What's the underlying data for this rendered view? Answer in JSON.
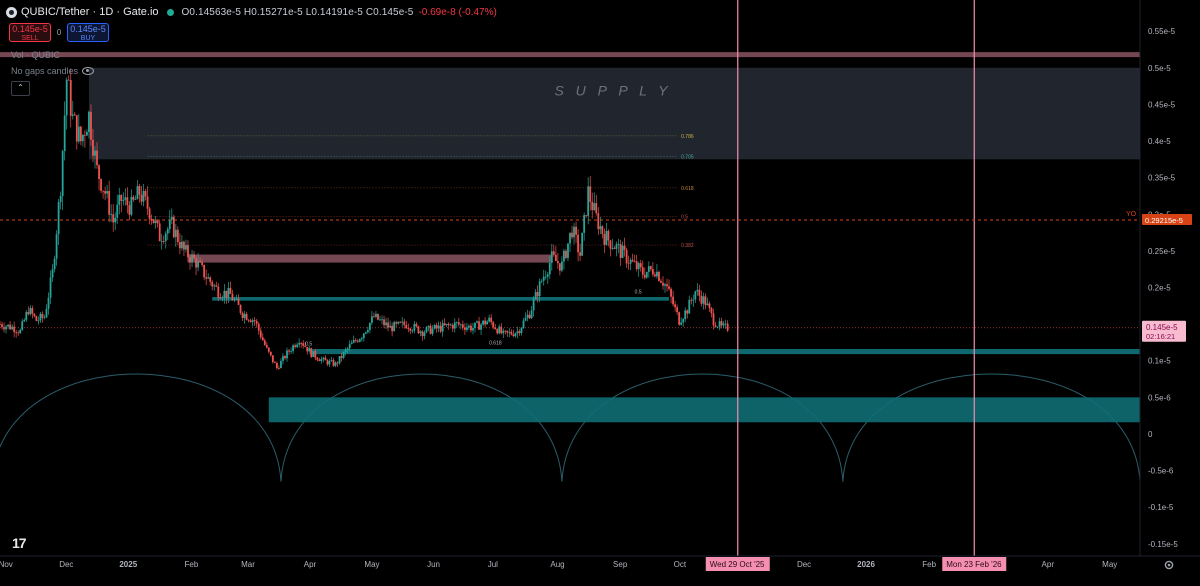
{
  "header": {
    "symbol": "QUBIC/Tether · 1D · Gate.io",
    "ohlc": "O0.14563e-5  H0.15271e-5  L0.14191e-5  C0.145e-5",
    "change": "-0.69e-8 (-0.47%)"
  },
  "trade": {
    "sell_price": "0.145e-5",
    "sell_label": "SELL",
    "spread": "0",
    "buy_price": "0.145e-5",
    "buy_label": "BUY"
  },
  "indicators": {
    "volume_label": "Vol · QUBIC",
    "no_gaps_label": "No gaps candles"
  },
  "collapse_icon": "chevron-up-icon",
  "tv_logo": "17",
  "colors": {
    "up": "#26a69a",
    "down": "#ef5350",
    "teal_zone": "#0f6e73",
    "supply_zone": "#272b36",
    "resistance": "#7a4b56",
    "cycle": "#2b5d6c",
    "vline": "#f48fb1",
    "yo_line": "#d84315",
    "price_label": "#f8bbd0"
  },
  "chart_data": {
    "type": "candlestick",
    "ylim": [
      -1.55e-06,
      5.7e-06
    ],
    "y_ticks": [
      {
        "v": 5.5e-06,
        "label": "0.55e-5"
      },
      {
        "v": 5e-06,
        "label": "0.5e-5"
      },
      {
        "v": 4.5e-06,
        "label": "0.45e-5"
      },
      {
        "v": 4e-06,
        "label": "0.4e-5"
      },
      {
        "v": 3.5e-06,
        "label": "0.35e-5"
      },
      {
        "v": 3e-06,
        "label": "0.3e-5"
      },
      {
        "v": 2.5e-06,
        "label": "0.25e-5"
      },
      {
        "v": 2e-06,
        "label": "0.2e-5"
      },
      {
        "v": 1e-06,
        "label": "0.1e-5"
      },
      {
        "v": 5e-07,
        "label": "0.5e-6"
      },
      {
        "v": 0,
        "label": "0"
      },
      {
        "v": -5e-07,
        "label": "-0.5e-6"
      },
      {
        "v": -1e-06,
        "label": "-0.1e-5"
      },
      {
        "v": -1.5e-06,
        "label": "-0.15e-5"
      }
    ],
    "x_ticks": [
      {
        "date": "2024-11-01",
        "label": "Nov"
      },
      {
        "date": "2024-12-01",
        "label": "Dec"
      },
      {
        "date": "2025-01-01",
        "label": "2025",
        "bold": true
      },
      {
        "date": "2025-02-01",
        "label": "Feb"
      },
      {
        "date": "2025-03-01",
        "label": "Mar"
      },
      {
        "date": "2025-04-01",
        "label": "Apr"
      },
      {
        "date": "2025-05-01",
        "label": "May"
      },
      {
        "date": "2025-06-01",
        "label": "Jun"
      },
      {
        "date": "2025-07-01",
        "label": "Jul"
      },
      {
        "date": "2025-08-01",
        "label": "Aug"
      },
      {
        "date": "2025-09-01",
        "label": "Sep"
      },
      {
        "date": "2025-10-01",
        "label": "Oct"
      },
      {
        "date": "2025-12-01",
        "label": "Dec"
      },
      {
        "date": "2026-01-01",
        "label": "2026",
        "bold": true
      },
      {
        "date": "2026-02-01",
        "label": "Feb"
      },
      {
        "date": "2026-04-01",
        "label": "Apr"
      },
      {
        "date": "2026-05-01",
        "label": "May"
      }
    ],
    "xlim": [
      "2024-10-29",
      "2026-05-16"
    ],
    "date_markers": [
      {
        "date": "2025-10-29",
        "label": "Wed 29 Oct '25"
      },
      {
        "date": "2026-02-23",
        "label": "Mon 23 Feb '26"
      }
    ],
    "price_path": [
      [
        "2024-10-29",
        1.5e-06
      ],
      [
        "2024-11-05",
        1.45e-06
      ],
      [
        "2024-11-08",
        1.4e-06
      ],
      [
        "2024-11-12",
        1.7e-06
      ],
      [
        "2024-11-16",
        1.55e-06
      ],
      [
        "2024-11-20",
        1.6e-06
      ],
      [
        "2024-11-24",
        2.2e-06
      ],
      [
        "2024-11-28",
        3.4e-06
      ],
      [
        "2024-12-01",
        4.85e-06
      ],
      [
        "2024-12-04",
        4.3e-06
      ],
      [
        "2024-12-08",
        4e-06
      ],
      [
        "2024-12-12",
        4.35e-06
      ],
      [
        "2024-12-16",
        3.6e-06
      ],
      [
        "2024-12-20",
        3.3e-06
      ],
      [
        "2024-12-24",
        2.9e-06
      ],
      [
        "2024-12-28",
        3.2e-06
      ],
      [
        "2025-01-02",
        3.1e-06
      ],
      [
        "2025-01-06",
        3.3e-06
      ],
      [
        "2025-01-12",
        3e-06
      ],
      [
        "2025-01-16",
        2.7e-06
      ],
      [
        "2025-01-22",
        2.85e-06
      ],
      [
        "2025-01-28",
        2.5e-06
      ],
      [
        "2025-02-03",
        2.35e-06
      ],
      [
        "2025-02-08",
        2.15e-06
      ],
      [
        "2025-02-14",
        1.95e-06
      ],
      [
        "2025-02-20",
        1.9e-06
      ],
      [
        "2025-02-26",
        1.65e-06
      ],
      [
        "2025-03-04",
        1.55e-06
      ],
      [
        "2025-03-10",
        1.15e-06
      ],
      [
        "2025-03-15",
        9e-07
      ],
      [
        "2025-03-20",
        1.1e-06
      ],
      [
        "2025-03-26",
        1.3e-06
      ],
      [
        "2025-04-01",
        1.1e-06
      ],
      [
        "2025-04-07",
        1e-06
      ],
      [
        "2025-04-13",
        9.5e-07
      ],
      [
        "2025-04-20",
        1.2e-06
      ],
      [
        "2025-04-26",
        1.35e-06
      ],
      [
        "2025-05-02",
        1.6e-06
      ],
      [
        "2025-05-10",
        1.45e-06
      ],
      [
        "2025-05-18",
        1.5e-06
      ],
      [
        "2025-05-26",
        1.4e-06
      ],
      [
        "2025-06-04",
        1.45e-06
      ],
      [
        "2025-06-12",
        1.5e-06
      ],
      [
        "2025-06-20",
        1.45e-06
      ],
      [
        "2025-06-28",
        1.55e-06
      ],
      [
        "2025-07-05",
        1.35e-06
      ],
      [
        "2025-07-12",
        1.4e-06
      ],
      [
        "2025-07-18",
        1.65e-06
      ],
      [
        "2025-07-24",
        2.1e-06
      ],
      [
        "2025-07-29",
        2.4e-06
      ],
      [
        "2025-08-03",
        2.3e-06
      ],
      [
        "2025-08-08",
        2.8e-06
      ],
      [
        "2025-08-12",
        2.45e-06
      ],
      [
        "2025-08-16",
        3.3e-06
      ],
      [
        "2025-08-20",
        2.95e-06
      ],
      [
        "2025-08-24",
        2.7e-06
      ],
      [
        "2025-08-30",
        2.55e-06
      ],
      [
        "2025-09-06",
        2.35e-06
      ],
      [
        "2025-09-12",
        2.2e-06
      ],
      [
        "2025-09-18",
        2.25e-06
      ],
      [
        "2025-09-24",
        2e-06
      ],
      [
        "2025-09-30",
        1.55e-06
      ],
      [
        "2025-10-04",
        1.7e-06
      ],
      [
        "2025-10-08",
        1.95e-06
      ],
      [
        "2025-10-13",
        1.8e-06
      ],
      [
        "2025-10-17",
        1.55e-06
      ],
      [
        "2025-10-21",
        1.45e-06
      ],
      [
        "2025-10-24",
        1.45e-06
      ]
    ],
    "supply_zone": {
      "from": "2024-12-12",
      "to": "2026-05-16",
      "low": 3.75e-06,
      "high": 5e-06,
      "label": "S U P P L Y"
    },
    "resistance_band": {
      "from": "2024-10-29",
      "to": "2026-05-16",
      "low": 5.16e-06,
      "high": 5.2e-06
    },
    "zones": [
      {
        "kind": "resistance",
        "from": "2025-01-30",
        "to": "2025-07-29",
        "low": 2.34e-06,
        "high": 2.45e-06
      },
      {
        "kind": "support",
        "from": "2025-02-11",
        "to": "2025-09-25",
        "low": 1.82e-06,
        "high": 1.87e-06
      },
      {
        "kind": "support",
        "from": "2025-03-31",
        "to": "2026-05-16",
        "low": 1.09e-06,
        "high": 1.16e-06
      },
      {
        "kind": "demand",
        "from": "2025-03-11",
        "to": "2026-05-16",
        "low": 1.6e-07,
        "high": 5e-07
      }
    ],
    "fib_levels": [
      {
        "label": "0.786",
        "value": 4.07e-06,
        "color": "#c8b24a"
      },
      {
        "label": "0.705",
        "value": 3.79e-06,
        "color": "#4aa39b"
      },
      {
        "label": "0.618",
        "value": 3.36e-06,
        "color": "#c88a3a"
      },
      {
        "label": "0.5",
        "value": 2.97e-06,
        "color": "#c0504d"
      },
      {
        "label": "0.382",
        "value": 2.58e-06,
        "color": "#c0504d"
      }
    ],
    "fib_small": [
      {
        "label": "0.5",
        "date": "2025-03-29",
        "value": 1.21e-06
      },
      {
        "label": "0.618",
        "date": "2025-06-28",
        "value": 1.22e-06
      },
      {
        "label": "0.5",
        "date": "2025-09-08",
        "value": 1.92e-06
      }
    ],
    "yo_line": {
      "label": "YO",
      "value": 2.9215e-06,
      "price_label": "0.29215e-5"
    },
    "current_price": {
      "value": 1.45e-06,
      "label": "0.145e-5",
      "countdown": "02:16:21"
    },
    "cycle_arcs": {
      "cusps": [
        "2024-10-25",
        "2025-03-17",
        "2025-08-03",
        "2025-12-20",
        "2026-05-16"
      ],
      "base": -6.5e-07,
      "top": 9e-07
    }
  }
}
